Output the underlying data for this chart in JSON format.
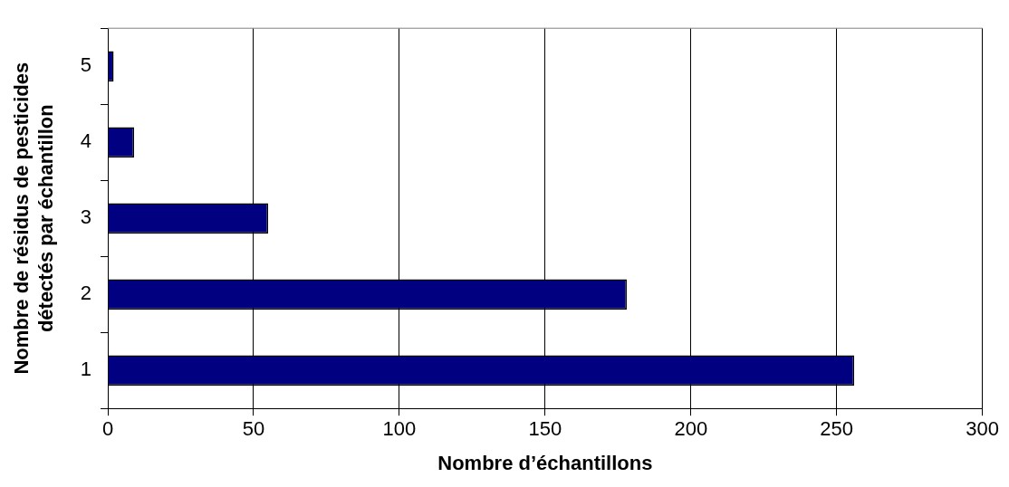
{
  "chart_data": {
    "type": "bar",
    "orientation": "horizontal",
    "xlabel": "Nombre d’échantillons",
    "ylabel": "Nombre de résidus de pesticides\ndétectés par échantillon",
    "categories": [
      "5",
      "4",
      "3",
      "2",
      "1"
    ],
    "values": [
      2,
      9,
      55,
      178,
      256
    ],
    "color": "#000080",
    "xlim": [
      0,
      300
    ],
    "xticks": [
      0,
      50,
      100,
      150,
      200,
      250,
      300
    ],
    "grid": "x",
    "legend": false
  }
}
